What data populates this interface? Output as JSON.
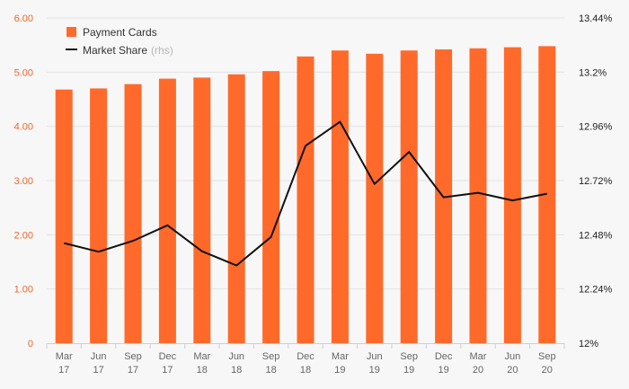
{
  "chart_data": {
    "type": "bar",
    "categories": [
      [
        "Mar",
        "17"
      ],
      [
        "Jun",
        "17"
      ],
      [
        "Sep",
        "17"
      ],
      [
        "Dec",
        "17"
      ],
      [
        "Mar",
        "18"
      ],
      [
        "Jun",
        "18"
      ],
      [
        "Sep",
        "18"
      ],
      [
        "Dec",
        "18"
      ],
      [
        "Mar",
        "19"
      ],
      [
        "Jun",
        "19"
      ],
      [
        "Sep",
        "19"
      ],
      [
        "Dec",
        "19"
      ],
      [
        "Mar",
        "20"
      ],
      [
        "Jun",
        "20"
      ],
      [
        "Sep",
        "20"
      ]
    ],
    "series": [
      {
        "name": "Payment Cards",
        "type": "bar",
        "axis": "left",
        "color": "#ff6a2b",
        "values": [
          4.68,
          4.7,
          4.78,
          4.88,
          4.9,
          4.96,
          5.02,
          5.29,
          5.4,
          5.34,
          5.4,
          5.42,
          5.44,
          5.46,
          5.48
        ]
      },
      {
        "name": "Market Share",
        "name_suffix": "(rhs)",
        "type": "line",
        "axis": "right",
        "color": "#111111",
        "values": [
          12.443,
          12.405,
          12.453,
          12.522,
          12.407,
          12.344,
          12.47,
          12.874,
          12.98,
          12.705,
          12.847,
          12.646,
          12.666,
          12.632,
          12.662
        ]
      }
    ],
    "y_left": {
      "lim": [
        0,
        6
      ],
      "ticks": [
        0,
        1,
        2,
        3,
        4,
        5,
        6
      ],
      "tick_labels": [
        "0",
        "1.00",
        "2.00",
        "3.00",
        "4.00",
        "5.00",
        "6.00"
      ],
      "color": "#e8692c"
    },
    "y_right": {
      "lim": [
        12,
        13.44
      ],
      "ticks": [
        12,
        12.24,
        12.48,
        12.72,
        12.96,
        13.2,
        13.44
      ],
      "tick_labels": [
        "12%",
        "12.24%",
        "12.48%",
        "12.72%",
        "12.96%",
        "13.2%",
        "13.44%"
      ],
      "color": "#222222"
    },
    "grid": true,
    "legend_position": "top-left"
  }
}
